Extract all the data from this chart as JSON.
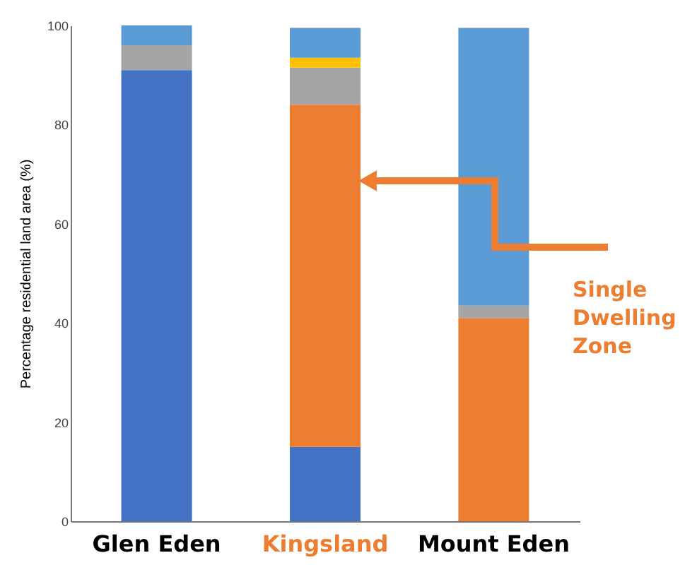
{
  "chart_data": {
    "type": "bar",
    "stacked": true,
    "categories": [
      "Glen Eden",
      "Kingsland",
      "Mount Eden"
    ],
    "ylabel": "Percentage residential land area (%)",
    "series": [
      {
        "color": "#4472c4",
        "values": [
          91,
          15,
          null
        ]
      },
      {
        "color": "#ed7d31",
        "values": [
          null,
          69,
          41
        ]
      },
      {
        "color": "#a5a5a5",
        "values": [
          5,
          7.5,
          2.5
        ]
      },
      {
        "color": "#ffc000",
        "values": [
          null,
          2,
          null
        ]
      },
      {
        "color": "#5b9bd5",
        "values": [
          4,
          6,
          56
        ]
      }
    ],
    "ylim": [
      0,
      100
    ],
    "yticks": [
      0,
      20,
      40,
      60,
      80,
      100
    ],
    "annotations": [
      "Single Dwelling Zone"
    ],
    "grid": false,
    "legend": false
  }
}
